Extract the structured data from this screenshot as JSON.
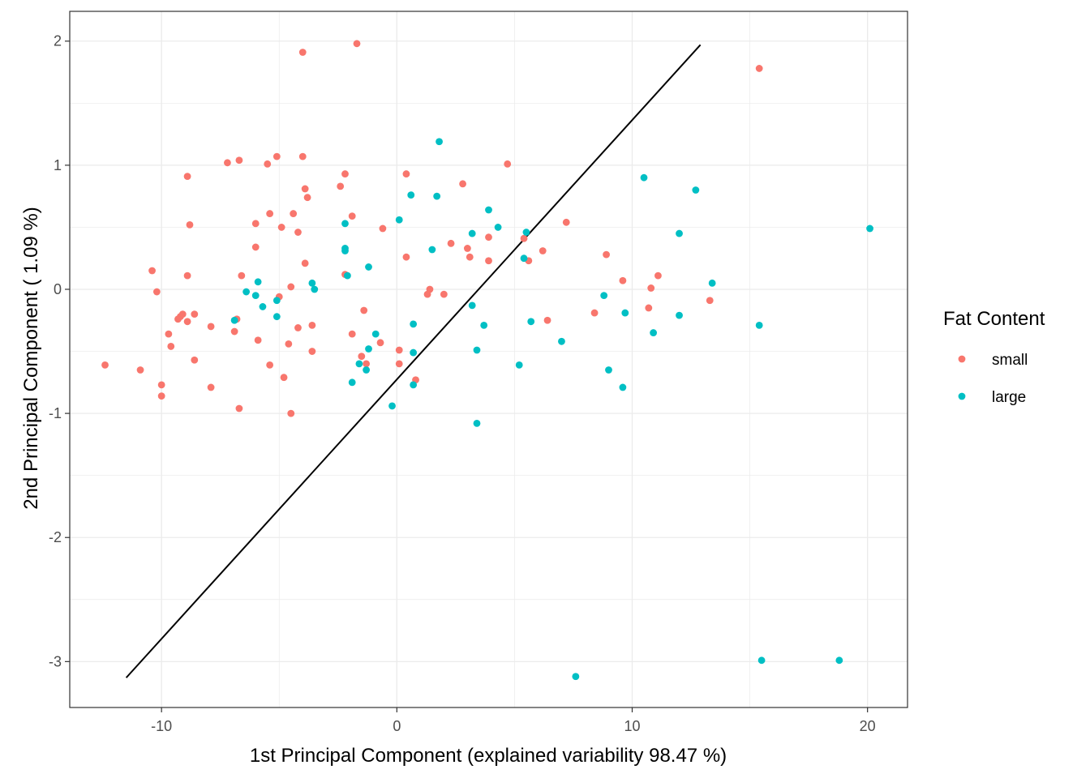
{
  "chart_data": {
    "type": "scatter",
    "title": "",
    "xlabel": "1st Principal Component (explained variability 98.47 %)",
    "ylabel": "2nd Principal Component ( 1.09 %)",
    "xlim": [
      -13.9,
      21.7
    ],
    "ylim": [
      -3.37,
      2.24
    ],
    "x_ticks": [
      -10,
      0,
      10,
      20
    ],
    "x_tick_labels": [
      "-10",
      "0",
      "10",
      "20"
    ],
    "y_ticks": [
      -3,
      -2,
      -1,
      0,
      1,
      2
    ],
    "y_tick_labels": [
      "-3",
      "-2",
      "-1",
      "0",
      "1",
      "2"
    ],
    "grid": true,
    "legend": {
      "title": "Fat Content",
      "position": "right"
    },
    "colors": {
      "small": "#F8766D",
      "large": "#00BFC4"
    },
    "line": {
      "color": "#000000",
      "x": [
        -11.5,
        12.9
      ],
      "y": [
        -3.13,
        1.97
      ]
    },
    "series": [
      {
        "name": "small",
        "color": "#F8766D",
        "points": [
          [
            -1.7,
            1.98
          ],
          [
            -4.0,
            1.91
          ],
          [
            15.4,
            1.78
          ],
          [
            -7.2,
            1.02
          ],
          [
            -6.7,
            1.04
          ],
          [
            -5.5,
            1.01
          ],
          [
            -5.1,
            1.07
          ],
          [
            -4.0,
            1.07
          ],
          [
            4.7,
            1.01
          ],
          [
            -8.9,
            0.91
          ],
          [
            -2.2,
            0.93
          ],
          [
            0.4,
            0.93
          ],
          [
            -2.4,
            0.83
          ],
          [
            2.8,
            0.85
          ],
          [
            -3.9,
            0.81
          ],
          [
            -3.8,
            0.74
          ],
          [
            -1.9,
            0.59
          ],
          [
            -4.4,
            0.61
          ],
          [
            -5.4,
            0.61
          ],
          [
            -6.0,
            0.53
          ],
          [
            -8.8,
            0.52
          ],
          [
            -4.9,
            0.5
          ],
          [
            -0.6,
            0.49
          ],
          [
            -4.2,
            0.46
          ],
          [
            7.2,
            0.54
          ],
          [
            2.3,
            0.37
          ],
          [
            3.0,
            0.33
          ],
          [
            3.9,
            0.42
          ],
          [
            5.4,
            0.41
          ],
          [
            6.2,
            0.31
          ],
          [
            -6.0,
            0.34
          ],
          [
            3.1,
            0.26
          ],
          [
            0.4,
            0.26
          ],
          [
            3.9,
            0.23
          ],
          [
            5.6,
            0.23
          ],
          [
            8.9,
            0.28
          ],
          [
            -3.9,
            0.21
          ],
          [
            -10.4,
            0.15
          ],
          [
            -8.9,
            0.11
          ],
          [
            -6.6,
            0.11
          ],
          [
            -2.2,
            0.12
          ],
          [
            11.1,
            0.11
          ],
          [
            9.6,
            0.07
          ],
          [
            10.8,
            0.01
          ],
          [
            -4.5,
            0.02
          ],
          [
            1.4,
            0.0
          ],
          [
            1.3,
            -0.04
          ],
          [
            2.0,
            -0.04
          ],
          [
            -10.2,
            -0.02
          ],
          [
            -5.0,
            -0.06
          ],
          [
            13.3,
            -0.09
          ],
          [
            10.7,
            -0.15
          ],
          [
            -1.4,
            -0.17
          ],
          [
            8.4,
            -0.19
          ],
          [
            -9.1,
            -0.2
          ],
          [
            -9.2,
            -0.22
          ],
          [
            -9.3,
            -0.24
          ],
          [
            -8.6,
            -0.2
          ],
          [
            -8.9,
            -0.26
          ],
          [
            6.4,
            -0.25
          ],
          [
            -6.8,
            -0.24
          ],
          [
            -4.2,
            -0.31
          ],
          [
            -3.6,
            -0.29
          ],
          [
            -7.9,
            -0.3
          ],
          [
            -6.9,
            -0.34
          ],
          [
            -9.7,
            -0.36
          ],
          [
            -1.9,
            -0.36
          ],
          [
            -5.9,
            -0.41
          ],
          [
            -0.7,
            -0.43
          ],
          [
            -4.6,
            -0.44
          ],
          [
            -9.6,
            -0.46
          ],
          [
            0.1,
            -0.49
          ],
          [
            -3.6,
            -0.5
          ],
          [
            -1.5,
            -0.54
          ],
          [
            -8.6,
            -0.57
          ],
          [
            -1.3,
            -0.6
          ],
          [
            0.1,
            -0.6
          ],
          [
            -5.4,
            -0.61
          ],
          [
            -12.4,
            -0.61
          ],
          [
            -10.9,
            -0.65
          ],
          [
            -4.8,
            -0.71
          ],
          [
            0.8,
            -0.73
          ],
          [
            -10.0,
            -0.77
          ],
          [
            -7.9,
            -0.79
          ],
          [
            -10.0,
            -0.86
          ],
          [
            -6.7,
            -0.96
          ],
          [
            -4.5,
            -1.0
          ]
        ]
      },
      {
        "name": "large",
        "color": "#00BFC4",
        "points": [
          [
            1.8,
            1.19
          ],
          [
            10.5,
            0.9
          ],
          [
            12.7,
            0.8
          ],
          [
            0.6,
            0.76
          ],
          [
            1.7,
            0.75
          ],
          [
            3.9,
            0.64
          ],
          [
            0.1,
            0.56
          ],
          [
            -2.2,
            0.53
          ],
          [
            4.3,
            0.5
          ],
          [
            20.1,
            0.49
          ],
          [
            5.5,
            0.46
          ],
          [
            3.2,
            0.45
          ],
          [
            12.0,
            0.45
          ],
          [
            1.5,
            0.32
          ],
          [
            -2.2,
            0.33
          ],
          [
            -2.2,
            0.31
          ],
          [
            5.4,
            0.25
          ],
          [
            -1.2,
            0.18
          ],
          [
            -2.1,
            0.11
          ],
          [
            -5.9,
            0.06
          ],
          [
            13.4,
            0.05
          ],
          [
            -3.6,
            0.05
          ],
          [
            -3.5,
            0.0
          ],
          [
            -6.4,
            -0.02
          ],
          [
            -6.0,
            -0.05
          ],
          [
            8.8,
            -0.05
          ],
          [
            -5.1,
            -0.09
          ],
          [
            -5.7,
            -0.14
          ],
          [
            3.2,
            -0.13
          ],
          [
            9.7,
            -0.19
          ],
          [
            12.0,
            -0.21
          ],
          [
            -5.1,
            -0.22
          ],
          [
            -6.9,
            -0.25
          ],
          [
            5.7,
            -0.26
          ],
          [
            0.7,
            -0.28
          ],
          [
            3.7,
            -0.29
          ],
          [
            15.4,
            -0.29
          ],
          [
            10.9,
            -0.35
          ],
          [
            -0.9,
            -0.36
          ],
          [
            7.0,
            -0.42
          ],
          [
            -1.2,
            -0.48
          ],
          [
            3.4,
            -0.49
          ],
          [
            0.7,
            -0.51
          ],
          [
            -1.6,
            -0.6
          ],
          [
            5.2,
            -0.61
          ],
          [
            -1.3,
            -0.65
          ],
          [
            9.0,
            -0.65
          ],
          [
            -1.9,
            -0.75
          ],
          [
            0.7,
            -0.77
          ],
          [
            9.6,
            -0.79
          ],
          [
            -0.2,
            -0.94
          ],
          [
            3.4,
            -1.08
          ],
          [
            15.5,
            -2.99
          ],
          [
            18.8,
            -2.99
          ],
          [
            7.6,
            -3.12
          ]
        ]
      }
    ]
  }
}
